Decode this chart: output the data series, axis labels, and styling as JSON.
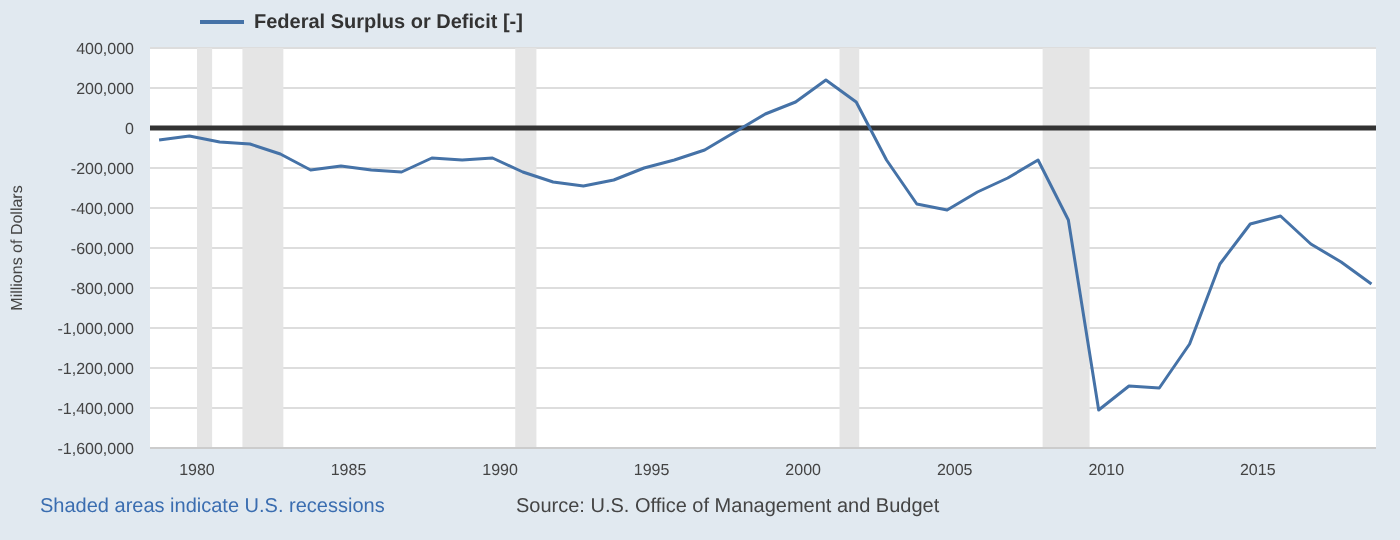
{
  "chart_data": {
    "type": "line",
    "ylabel": "Millions of Dollars",
    "x": [
      1978.75,
      1979.75,
      1980.75,
      1981.75,
      1982.75,
      1983.75,
      1984.75,
      1985.75,
      1986.75,
      1987.75,
      1988.75,
      1989.75,
      1990.75,
      1991.75,
      1992.75,
      1993.75,
      1994.75,
      1995.75,
      1996.75,
      1997.75,
      1998.75,
      1999.75,
      2000.75,
      2001.75,
      2002.75,
      2003.75,
      2004.75,
      2005.75,
      2006.75,
      2007.75,
      2008.75,
      2009.75,
      2010.75,
      2011.75,
      2012.75,
      2013.75,
      2014.75,
      2015.75,
      2016.75,
      2017.75,
      2018.75
    ],
    "series": [
      {
        "name": "Federal Surplus or Deficit [-]",
        "color": "#4572a7",
        "values": [
          -60000,
          -40000,
          -70000,
          -80000,
          -130000,
          -210000,
          -190000,
          -210000,
          -220000,
          -150000,
          -160000,
          -150000,
          -220000,
          -270000,
          -290000,
          -260000,
          -200000,
          -160000,
          -110000,
          -20000,
          70000,
          130000,
          240000,
          130000,
          -160000,
          -380000,
          -410000,
          -320000,
          -250000,
          -160000,
          -460000,
          -1410000,
          -1290000,
          -1300000,
          -1080000,
          -680000,
          -480000,
          -440000,
          -580000,
          -670000,
          -780000
        ]
      }
    ],
    "xlim": [
      1978.45,
      2018.9
    ],
    "xticks": [
      1980,
      1985,
      1990,
      1995,
      2000,
      2005,
      2010,
      2015
    ],
    "ylim": [
      -1600000,
      400000
    ],
    "yticks": [
      {
        "value": -1600000,
        "label": "-1,600,000"
      },
      {
        "value": -1400000,
        "label": "-1,400,000"
      },
      {
        "value": -1200000,
        "label": "-1,200,000"
      },
      {
        "value": -1000000,
        "label": "-1,000,000"
      },
      {
        "value": -800000,
        "label": "-800,000"
      },
      {
        "value": -600000,
        "label": "-600,000"
      },
      {
        "value": -400000,
        "label": "-400,000"
      },
      {
        "value": -200000,
        "label": "-200,000"
      },
      {
        "value": 0,
        "label": "0"
      },
      {
        "value": 200000,
        "label": "200,000"
      },
      {
        "value": 400000,
        "label": "400,000"
      }
    ],
    "grid": "y",
    "legend": "top left",
    "marker": "none",
    "line_style": "solid",
    "ref_lines": [
      {
        "axis": "y",
        "value": 0,
        "color": "#333333"
      }
    ],
    "bands": [
      {
        "axis": "x",
        "from": 1980.0,
        "to": 1980.5,
        "color": "#e5e5e5"
      },
      {
        "axis": "x",
        "from": 1981.5,
        "to": 1982.85,
        "color": "#e5e5e5"
      },
      {
        "axis": "x",
        "from": 1990.5,
        "to": 1991.2,
        "color": "#e5e5e5"
      },
      {
        "axis": "x",
        "from": 2001.2,
        "to": 2001.85,
        "color": "#e5e5e5"
      },
      {
        "axis": "x",
        "from": 2007.9,
        "to": 2009.45,
        "color": "#e5e5e5"
      }
    ],
    "annotations": [
      "Shaded areas indicate U.S. recessions",
      "Source: U.S. Office of Management and Budget"
    ]
  }
}
